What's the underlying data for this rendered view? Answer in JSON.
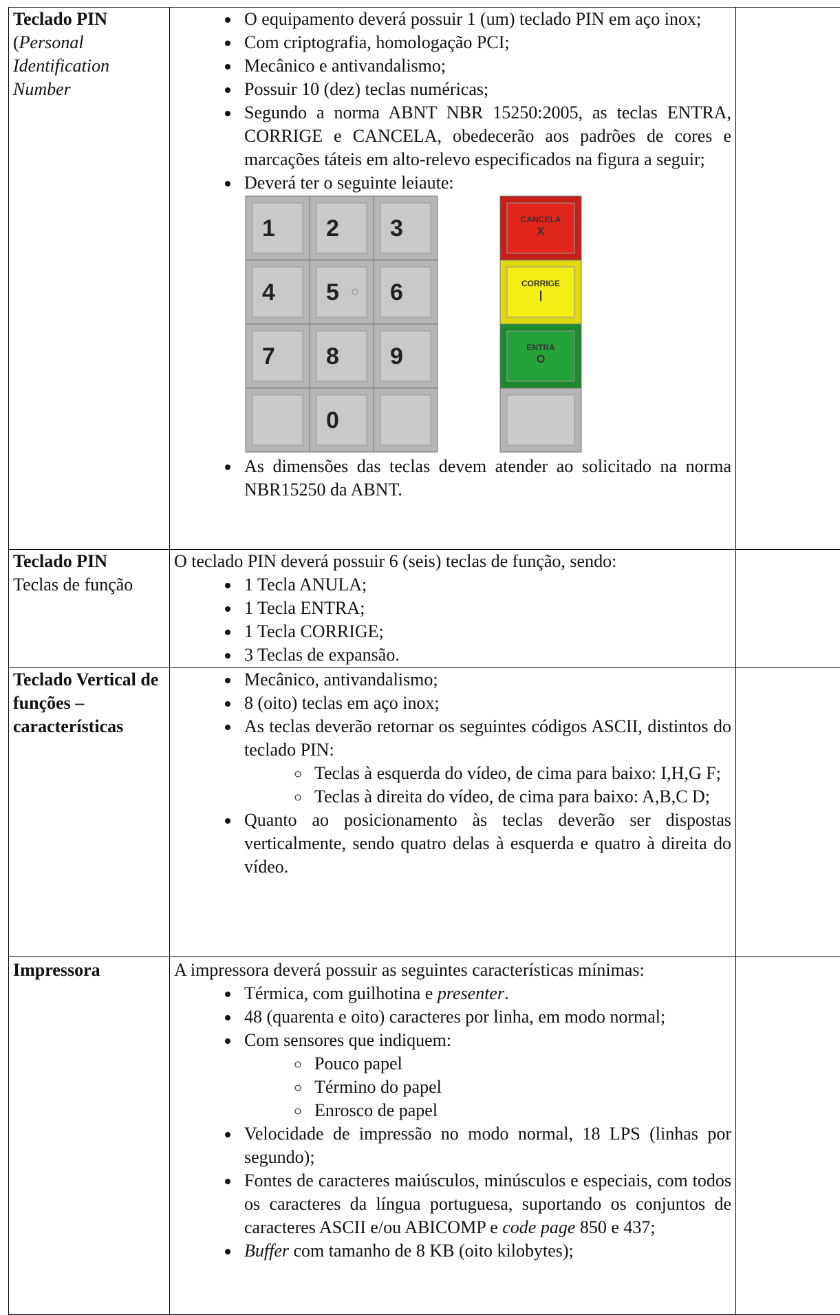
{
  "table": {
    "rows": [
      {
        "label": {
          "title": "Teclado PIN",
          "open": "(",
          "italic": "Personal Identification Number"
        },
        "items": [
          "O equipamento deverá possuir 1 (um) teclado PIN em aço inox;",
          "Com criptografia, homologação PCI;",
          "Mecânico e antivandalismo;",
          "Possuir 10 (dez) teclas numéricas;",
          "Segundo a norma ABNT NBR 15250:2005, as teclas ENTRA, CORRIGE e CANCELA, obedecerão aos padrões de cores e marcações táteis em alto-relevo especificados na figura a seguir;",
          "Deverá ter o seguinte leiaute:",
          "As dimensões das teclas devem atender ao solicitado na norma NBR15250 da ABNT."
        ],
        "keypad": {
          "keys": [
            "1",
            "2",
            "3",
            "4",
            "5",
            "6",
            "7",
            "8",
            "9",
            "0"
          ],
          "function_keys": [
            {
              "name": "CANCELA",
              "symbol": "X"
            },
            {
              "name": "CORRIGE",
              "symbol": "|"
            },
            {
              "name": "ENTRA",
              "symbol": "O"
            }
          ]
        }
      },
      {
        "label": {
          "title": "Teclado PIN",
          "subtitle": "Teclas de função"
        },
        "intro": "O teclado PIN deverá possuir 6 (seis) teclas de função, sendo:",
        "items": [
          "1 Tecla ANULA;",
          "1 Tecla ENTRA;",
          "1 Tecla CORRIGE;",
          "3 Teclas de expansão."
        ]
      },
      {
        "label": {
          "title": "Teclado Vertical de funções – características"
        },
        "items": [
          "Mecânico, antivandalismo;",
          "8 (oito) teclas em aço inox;",
          "As teclas deverão retornar os seguintes códigos ASCII, distintos do teclado PIN:",
          "Quanto ao posicionamento às teclas deverão ser dispostas verticalmente, sendo quatro delas à esquerda e quatro à direita do vídeo."
        ],
        "subitems": [
          "Teclas à esquerda do vídeo, de cima para baixo: I,H,G F;",
          "Teclas à direita do vídeo, de cima para baixo: A,B,C D;"
        ]
      },
      {
        "label": {
          "title": "Impressora"
        },
        "intro": "A impressora deverá possuir as seguintes características mínimas:",
        "items": [
          [
            "Térmica, com guilhotina e ",
            "presenter",
            "."
          ],
          "48 (quarenta e oito) caracteres por linha, em modo normal;",
          "Com sensores que indiquem:",
          "Velocidade de impressão no modo normal, 18 LPS (linhas por segundo);",
          [
            "Fontes de caracteres maiúsculos, minúsculos e especiais, com todos os caracteres da língua portuguesa, suportando os conjuntos de caracteres ASCII e/ou ABICOMP e ",
            "code page",
            " 850 e 437;"
          ],
          [
            "",
            "Buffer",
            " com tamanho de 8 KB (oito kilobytes);"
          ]
        ],
        "subitems": [
          "Pouco papel",
          "Término do papel",
          "Enrosco de papel"
        ]
      }
    ]
  }
}
